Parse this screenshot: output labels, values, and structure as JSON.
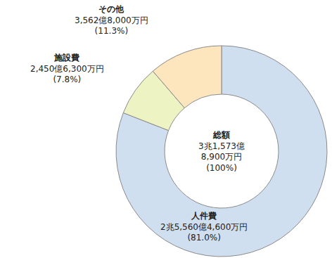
{
  "chart_data": {
    "type": "pie",
    "categories": [
      "人件費",
      "施設費",
      "その他"
    ],
    "values": [
      81.0,
      7.8,
      11.3
    ],
    "value_labels": [
      "(81.0%)",
      "(7.8%)",
      "(11.3%)"
    ],
    "amounts": [
      "2兆5,560億4,600万円",
      "2,450億6,300万円",
      "3,562億8,000万円"
    ],
    "colors": [
      "#cfdff0",
      "#eef3c4",
      "#fde6bd"
    ],
    "center": {
      "label": "総額",
      "amount_lines": [
        "3兆1,573億",
        "8,900万円"
      ],
      "value": 100,
      "value_label": "(100%)"
    }
  }
}
